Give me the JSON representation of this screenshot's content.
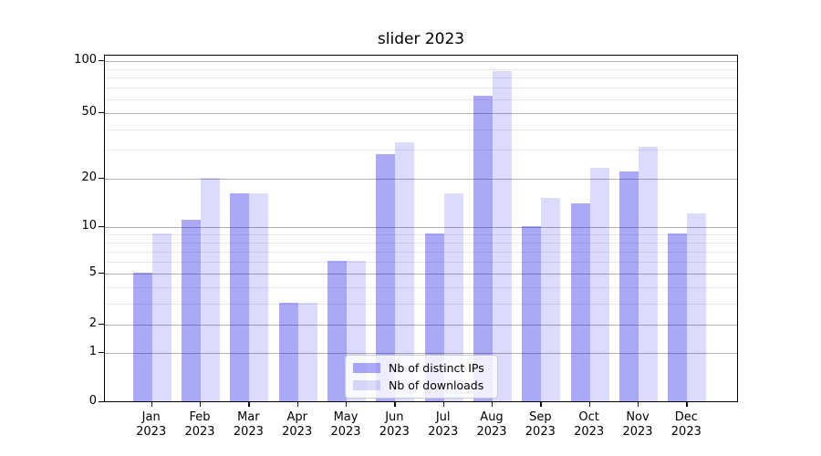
{
  "chart_data": {
    "type": "bar",
    "title": "slider 2023",
    "categories": [
      "Jan 2023",
      "Feb 2023",
      "Mar 2023",
      "Apr 2023",
      "May 2023",
      "Jun 2023",
      "Jul 2023",
      "Aug 2023",
      "Sep 2023",
      "Oct 2023",
      "Nov 2023",
      "Dec 2023"
    ],
    "x_tick_months": [
      "Jan",
      "Feb",
      "Mar",
      "Apr",
      "May",
      "Jun",
      "Jul",
      "Aug",
      "Sep",
      "Oct",
      "Nov",
      "Dec"
    ],
    "x_tick_year": "2023",
    "series": [
      {
        "name": "Nb of distinct IPs",
        "color": "rgba(30,30,235,0.38)",
        "values": [
          5,
          11,
          16,
          3,
          6,
          28,
          9,
          62,
          10,
          14,
          22,
          9
        ]
      },
      {
        "name": "Nb of downloads",
        "color": "rgba(30,30,235,0.16)",
        "values": [
          9,
          20,
          16,
          3,
          6,
          33,
          16,
          86,
          15,
          23,
          31,
          12
        ]
      }
    ],
    "yscale": "log1p",
    "ylim": [
      0,
      108
    ],
    "y_major_ticks": [
      0,
      1,
      2,
      5,
      10,
      20,
      50,
      100
    ],
    "y_minor_ticks": [
      3,
      4,
      6,
      7,
      8,
      9,
      30,
      40,
      60,
      70,
      80,
      90
    ],
    "grid": "both",
    "legend_position": "lower center"
  },
  "colors": {
    "grid_major": "#b0b0b0",
    "grid_minor": "#e8e8e8",
    "axis": "#000000",
    "legend_border": "#cccccc",
    "legend_background": "rgba(255,255,255,0.8)"
  }
}
